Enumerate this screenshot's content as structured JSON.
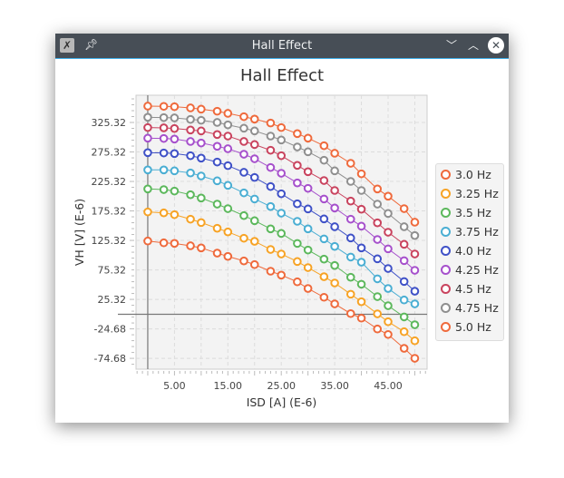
{
  "window": {
    "title": "Hall Effect",
    "icons": [
      "app-icon",
      "pin-icon",
      "minimize-icon",
      "maximize-icon",
      "close-icon"
    ]
  },
  "chart_data": {
    "type": "line",
    "title": "Hall Effect",
    "xlabel": "ISD [A] (E-6)",
    "ylabel": "VH [V] (E-6)",
    "xlim": [
      -2.2,
      52.3
    ],
    "ylim": [
      -93,
      371.5
    ],
    "x_ticks": [
      5,
      15,
      25,
      35,
      45
    ],
    "x_tick_labels": [
      "5.00",
      "15.00",
      "25.00",
      "35.00",
      "45.00"
    ],
    "y_ticks": [
      325.32,
      275.32,
      225.32,
      175.32,
      125.32,
      75.32,
      25.32,
      -24.68,
      -74.68
    ],
    "y_tick_labels": [
      "325.32",
      "275.32",
      "225.32",
      "175.32",
      "125.32",
      "75.32",
      "25.32",
      "-24.68",
      "-74.68"
    ],
    "grid": true,
    "legend_position": "right",
    "x": [
      0,
      3,
      5,
      8,
      10,
      13,
      15,
      18,
      20,
      23,
      25,
      28,
      30,
      33,
      35,
      38,
      40,
      43,
      45,
      48,
      50
    ],
    "series": [
      {
        "name": "3.0 Hz",
        "color": "#ef6a3c",
        "values": [
          124.3,
          121.2,
          120.3,
          116.2,
          112.6,
          103.8,
          98.2,
          90.5,
          84.3,
          73.1,
          66.5,
          55.1,
          43.8,
          28.9,
          17.7,
          1.2,
          -6.5,
          -24.9,
          -34.2,
          -57.7,
          -74.6
        ]
      },
      {
        "name": "3.25 Hz",
        "color": "#f7a325",
        "values": [
          173.6,
          172.0,
          169.0,
          161.3,
          155.6,
          145.9,
          139.7,
          129.0,
          123.8,
          110.0,
          102.3,
          89.5,
          79.2,
          63.8,
          53.1,
          34.1,
          21.3,
          0.8,
          -12.6,
          -29.5,
          -44.9
        ]
      },
      {
        "name": "3.5 Hz",
        "color": "#5cb85c",
        "values": [
          212.6,
          211.5,
          209.0,
          202.8,
          197.2,
          186.9,
          179.2,
          167.4,
          158.7,
          144.9,
          137.2,
          120.2,
          109.0,
          93.6,
          82.8,
          62.8,
          51.0,
          30.0,
          14.6,
          -4.4,
          -17.7
        ]
      },
      {
        "name": "3.75 Hz",
        "color": "#4aaed3",
        "values": [
          244.9,
          244.9,
          243.3,
          239.7,
          234.6,
          226.4,
          218.7,
          205.9,
          195.6,
          182.8,
          171.5,
          157.7,
          144.9,
          127.9,
          115.1,
          97.1,
          88.4,
          60.2,
          43.8,
          24.3,
          17.7
        ]
      },
      {
        "name": "4.0 Hz",
        "color": "#3f51c7",
        "values": [
          274.1,
          273.6,
          272.6,
          269.0,
          264.9,
          258.2,
          252.1,
          240.8,
          232.1,
          216.7,
          204.4,
          187.4,
          178.7,
          161.8,
          148.5,
          129.5,
          112.6,
          94.1,
          77.7,
          55.6,
          39.2
        ]
      },
      {
        "name": "4.25 Hz",
        "color": "#a650cc",
        "values": [
          298.7,
          298.2,
          297.2,
          293.1,
          290.5,
          284.9,
          280.8,
          271.5,
          263.8,
          249.0,
          239.2,
          222.8,
          213.6,
          195.6,
          180.3,
          161.3,
          149.5,
          126.9,
          111.0,
          91.0,
          74.6
        ]
      },
      {
        "name": "4.5 Hz",
        "color": "#c9435e",
        "values": [
          316.7,
          316.2,
          315.1,
          312.6,
          311.0,
          304.9,
          302.3,
          293.1,
          287.9,
          278.2,
          269.0,
          252.6,
          241.8,
          226.9,
          210.0,
          192.0,
          178.2,
          155.1,
          139.2,
          118.7,
          102.3
        ]
      },
      {
        "name": "4.75 Hz",
        "color": "#8f8f8f",
        "values": [
          334.1,
          333.6,
          333.1,
          330.5,
          329.0,
          325.4,
          321.3,
          315.6,
          311.0,
          302.3,
          295.6,
          283.8,
          275.6,
          261.3,
          243.3,
          225.4,
          210.0,
          186.9,
          171.0,
          148.5,
          133.6
        ]
      },
      {
        "name": "5.0 Hz",
        "color": "#ef6a3c",
        "values": [
          353.1,
          352.6,
          352.1,
          350.0,
          347.9,
          344.4,
          340.8,
          335.1,
          331.0,
          324.4,
          316.7,
          306.4,
          298.7,
          285.9,
          273.1,
          256.1,
          238.2,
          212.6,
          200.3,
          179.2,
          156.2
        ]
      }
    ]
  }
}
